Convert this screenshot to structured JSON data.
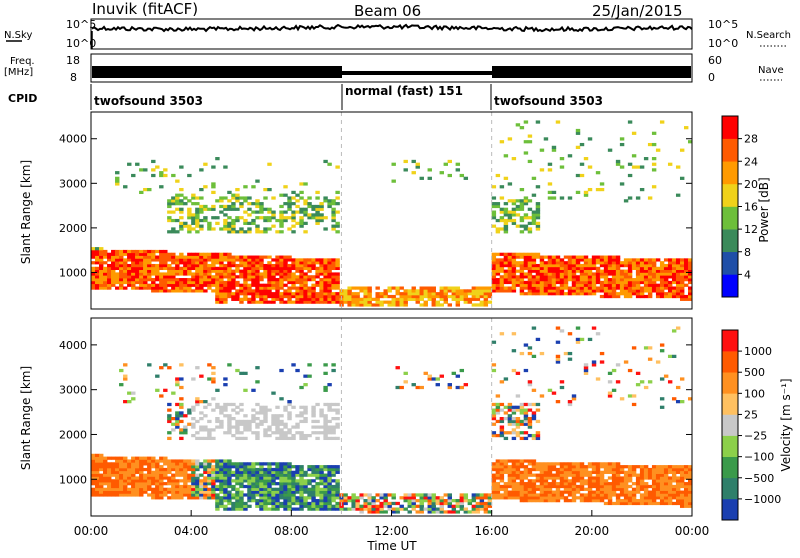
{
  "header": {
    "station": "Inuvik (fitACF)",
    "beam": "Beam 06",
    "date": "25/Jan/2015"
  },
  "summary_panels": {
    "nsky_label": "N.Sky",
    "nsky_ticks": [
      "10^5",
      "10^0"
    ],
    "nsearch_label": "N.Search",
    "nsearch_ticks": [
      "10^5",
      "10^0"
    ],
    "freq_label_line1": "Freq.",
    "freq_label_line2": "[MHz]",
    "freq_ticks": [
      "18",
      "8"
    ],
    "nave_label": "Nave",
    "nave_ticks": [
      "60",
      "0"
    ],
    "cpid_label": "CPID",
    "cpid_segments": [
      {
        "label": "twofsound 3503",
        "start_hour": 0,
        "end_hour": 10
      },
      {
        "label": "normal (fast) 151",
        "start_hour": 10,
        "end_hour": 16
      },
      {
        "label": "twofsound 3503",
        "start_hour": 16,
        "end_hour": 24
      }
    ]
  },
  "colors": {
    "power_scale": [
      "#0000ff",
      "#1f4fa8",
      "#3a8a5a",
      "#6dbf3a",
      "#f0d21a",
      "#ff9a00",
      "#ff5a00",
      "#ff0000"
    ],
    "velocity_scale": [
      "#1a3fb0",
      "#2f7f6a",
      "#3a9a4a",
      "#8cd04a",
      "#c8c8c8",
      "#ffc060",
      "#ff9020",
      "#ff5a00",
      "#ff1010"
    ]
  },
  "chart_data": [
    {
      "type": "heatmap",
      "name": "power",
      "xlabel": "",
      "ylabel": "Slant Range [km]",
      "xlim": [
        0,
        24
      ],
      "ylim": [
        180,
        4600
      ],
      "yticks": [
        "1000",
        "2000",
        "3000",
        "4000"
      ],
      "colorbar_label": "Power [dB]",
      "colorbar_ticks": [
        "4",
        "8",
        "12",
        "16",
        "20",
        "24",
        "28"
      ],
      "colorbar_range": [
        0,
        32
      ]
    },
    {
      "type": "heatmap",
      "name": "velocity",
      "xlabel": "Time UT",
      "ylabel": "Slant Range [km]",
      "xlim": [
        0,
        24
      ],
      "ylim": [
        180,
        4600
      ],
      "xticks": [
        "00:00",
        "04:00",
        "08:00",
        "12:00",
        "16:00",
        "20:00",
        "00:00"
      ],
      "yticks": [
        "1000",
        "2000",
        "3000",
        "4000"
      ],
      "colorbar_label": "Velocity [m s⁻¹]",
      "colorbar_ticks": [
        "1000",
        "500",
        "100",
        "25",
        "−25",
        "−100",
        "−500",
        "−1000"
      ]
    }
  ]
}
